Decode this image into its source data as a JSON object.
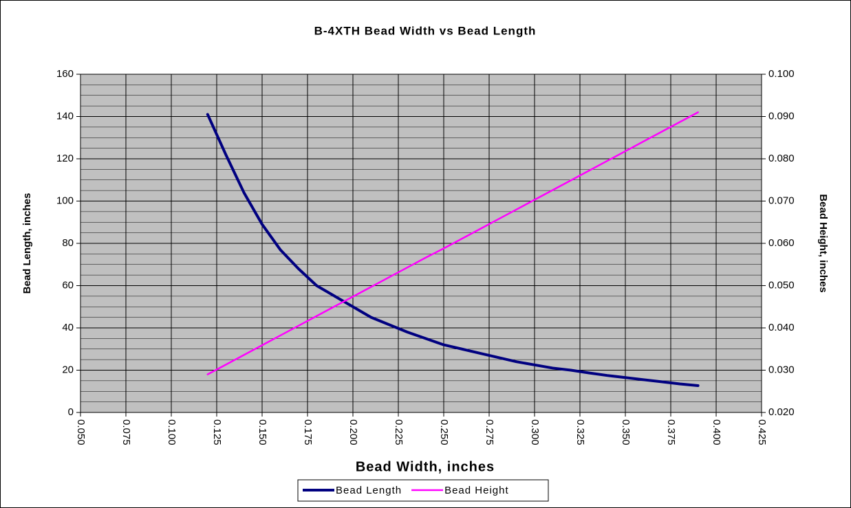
{
  "chart_data": {
    "type": "line",
    "title": "B-4XTH Bead Width vs Bead Length",
    "xlabel": "Bead Width, inches",
    "ylabel": "Bead Length, inches",
    "y2label": "Bead Height, inches",
    "x": [
      0.12,
      0.13,
      0.14,
      0.15,
      0.16,
      0.17,
      0.18,
      0.19,
      0.2,
      0.21,
      0.22,
      0.23,
      0.24,
      0.25,
      0.26,
      0.27,
      0.28,
      0.29,
      0.3,
      0.31,
      0.32,
      0.33,
      0.34,
      0.35,
      0.36,
      0.37,
      0.38,
      0.39
    ],
    "series": [
      {
        "name": "Bead Length",
        "color": "#000080",
        "values": [
          141,
          122,
          104,
          89,
          77,
          68,
          60,
          55,
          50,
          45,
          41.5,
          38,
          35,
          32,
          30,
          28,
          26,
          24,
          22.5,
          21,
          20,
          18.7,
          17.5,
          16.5,
          15.5,
          14.5,
          13.5,
          12.7
        ]
      },
      {
        "name": "Bead Height",
        "color": "#ff00ff",
        "axis": "y2",
        "values": [
          0.029,
          0.0313,
          0.0336,
          0.0359,
          0.0382,
          0.0405,
          0.0428,
          0.0451,
          0.0474,
          0.0497,
          0.052,
          0.0543,
          0.0566,
          0.0588,
          0.0611,
          0.0634,
          0.0657,
          0.068,
          0.0703,
          0.0726,
          0.0749,
          0.0772,
          0.0795,
          0.0818,
          0.0841,
          0.0864,
          0.0887,
          0.091
        ]
      }
    ],
    "xlim": [
      0.05,
      0.425
    ],
    "xticks": [
      {
        "value": 0.05,
        "label": "0.050"
      },
      {
        "value": 0.075,
        "label": "0.075"
      },
      {
        "value": 0.1,
        "label": "0.100"
      },
      {
        "value": 0.125,
        "label": "0.125"
      },
      {
        "value": 0.15,
        "label": "0.150"
      },
      {
        "value": 0.175,
        "label": "0.175"
      },
      {
        "value": 0.2,
        "label": "0.200"
      },
      {
        "value": 0.225,
        "label": "0.225"
      },
      {
        "value": 0.25,
        "label": "0.250"
      },
      {
        "value": 0.275,
        "label": "0.275"
      },
      {
        "value": 0.3,
        "label": "0.300"
      },
      {
        "value": 0.325,
        "label": "0.325"
      },
      {
        "value": 0.35,
        "label": "0.350"
      },
      {
        "value": 0.375,
        "label": "0.375"
      },
      {
        "value": 0.4,
        "label": "0.400"
      },
      {
        "value": 0.425,
        "label": "0.425"
      }
    ],
    "ylim": [
      0,
      160
    ],
    "yticks": [
      0,
      20,
      40,
      60,
      80,
      100,
      120,
      140,
      160
    ],
    "y2lim": [
      0.02,
      0.1
    ],
    "y2ticks": [
      {
        "value": 0.02,
        "label": "0.020"
      },
      {
        "value": 0.03,
        "label": "0.030"
      },
      {
        "value": 0.04,
        "label": "0.040"
      },
      {
        "value": 0.05,
        "label": "0.050"
      },
      {
        "value": 0.06,
        "label": "0.060"
      },
      {
        "value": 0.07,
        "label": "0.070"
      },
      {
        "value": 0.08,
        "label": "0.080"
      },
      {
        "value": 0.09,
        "label": "0.090"
      },
      {
        "value": 0.1,
        "label": "0.100"
      }
    ],
    "grid": true,
    "minor_grid_step": 5,
    "legend": "bottom"
  }
}
